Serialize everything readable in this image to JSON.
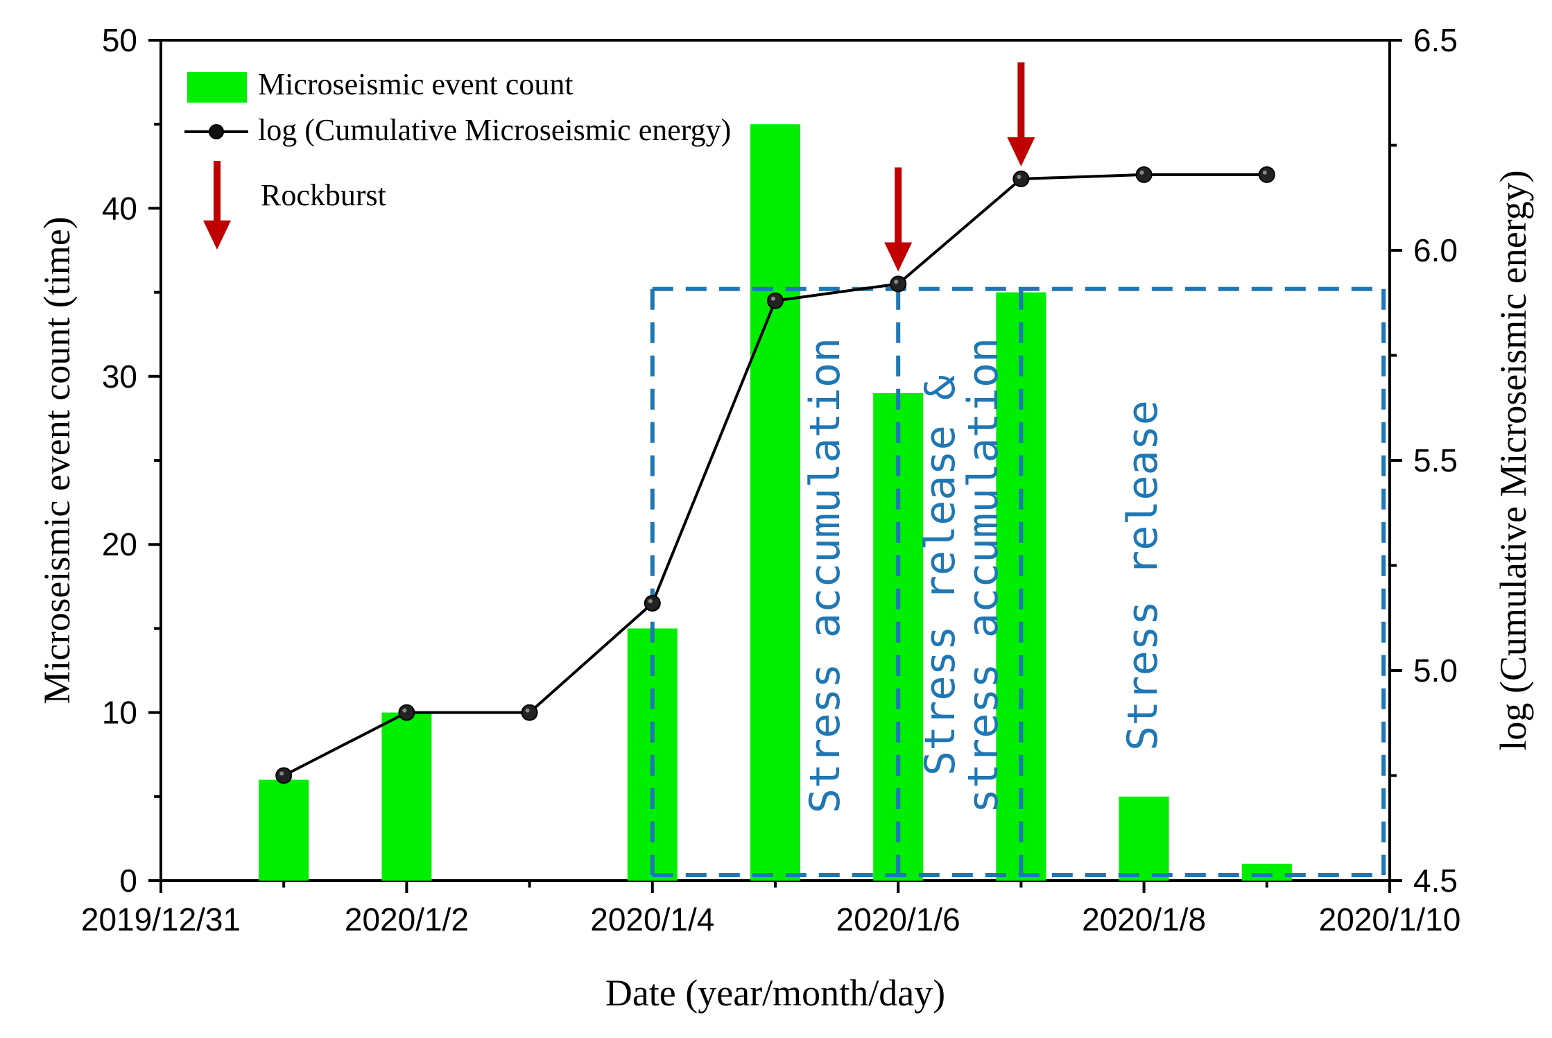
{
  "chart_data": {
    "type": "bar+line",
    "x_axis": {
      "label": "Date (year/month/day)",
      "tick_labels": [
        "2019/12/31",
        "2020/1/2",
        "2020/1/4",
        "2020/1/6",
        "2020/1/8",
        "2020/1/10"
      ],
      "tick_days": [
        0,
        2,
        4,
        6,
        8,
        10
      ],
      "range_days": [
        0,
        10
      ]
    },
    "y_left": {
      "label": "Microseismic event count (time)",
      "ticks": [
        0,
        10,
        20,
        30,
        40,
        50
      ],
      "range": [
        0,
        50
      ]
    },
    "y_right": {
      "label": "log (Cumulative Microseismic energy)",
      "ticks": [
        "4.5",
        "5.0",
        "5.5",
        "6.0",
        "6.5"
      ],
      "range": [
        4.5,
        6.5
      ]
    },
    "bars": {
      "name": "Microseismic event count",
      "color": "#00ee00",
      "x_days": [
        1,
        2,
        4,
        5,
        6,
        7,
        8,
        9
      ],
      "values": [
        6,
        10,
        15,
        45,
        29,
        35,
        5,
        1
      ]
    },
    "line": {
      "name": "log (Cumulative Microseismic energy)",
      "color": "#000000",
      "x_days": [
        1,
        2,
        3,
        4,
        5,
        6,
        7,
        8,
        9
      ],
      "values": [
        4.75,
        4.9,
        4.9,
        5.16,
        5.88,
        5.92,
        6.17,
        6.18,
        6.18
      ]
    },
    "rockburst": {
      "name": "Rockburst",
      "color": "#c00000",
      "x_days": [
        6,
        7
      ]
    },
    "regions": {
      "color": "#1f77b4",
      "x_bounds": [
        4,
        6,
        7,
        9.95
      ],
      "top_value": 35.2,
      "labels": {
        "accumulation": "Stress accumulation",
        "release_accumulation_line1": "Stress release &",
        "release_accumulation_line2": "stress accumulation",
        "release": "Stress release"
      }
    },
    "legend": {
      "bar_label": "Microseismic event count",
      "line_label": "log (Cumulative Microseismic energy)",
      "arrow_label": "Rockburst",
      "position": "top-left"
    }
  }
}
